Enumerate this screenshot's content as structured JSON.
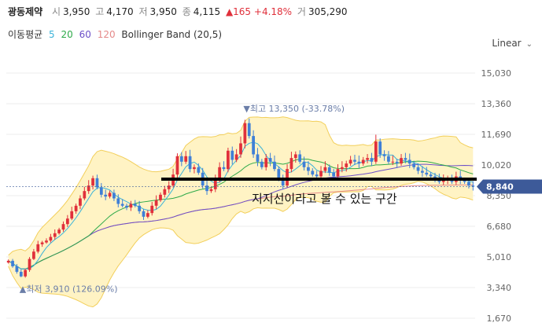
{
  "header": {
    "name": "광동제약",
    "open_label": "시",
    "open": "3,950",
    "high_label": "고",
    "high": "4,170",
    "low_label": "저",
    "low": "3,950",
    "close_label": "종",
    "close": "4,115",
    "change": "▲165 +4.18%",
    "volume_label": "거",
    "volume": "305,290"
  },
  "indicators": {
    "label": "이동평균",
    "ma5": "5",
    "ma20": "20",
    "ma60": "60",
    "ma120": "120",
    "bollinger": "Bollinger Band (20,5)"
  },
  "scale_label": "Linear",
  "colors": {
    "up": "#e0303b",
    "down": "#3f7fd6",
    "ma5": "#3bb3d9",
    "ma20": "#2eaa4a",
    "ma60": "#6b4fc8",
    "ma120": "#e58a8a",
    "band": "#fff3c4",
    "band_edge": "#f2cf5b",
    "current": "#3d5a99"
  },
  "chart_data": {
    "type": "candlestick",
    "y_scale": "linear",
    "ylim": [
      1670,
      15030
    ],
    "yticks": [
      "15,030",
      "13,360",
      "11,690",
      "10,020",
      "8,350",
      "6,680",
      "5,010",
      "3,340",
      "1,670"
    ],
    "current_price": "8,840",
    "grid": true,
    "max_note": "▼최고 13,350 (-33.78%)",
    "min_note": "▲최저 3,910 (126.09%)",
    "annotation": "지지선이라고 볼 수 있는 구간",
    "support_line": 8650,
    "close_path": [
      4800,
      4500,
      4200,
      3950,
      4300,
      4900,
      5300,
      5700,
      5800,
      5900,
      6100,
      6300,
      6500,
      6800,
      7100,
      7500,
      7800,
      8200,
      8600,
      8900,
      9300,
      8800,
      8400,
      8300,
      8500,
      8200,
      7900,
      7800,
      7700,
      7900,
      7800,
      7500,
      7200,
      7400,
      7800,
      8100,
      8400,
      8700,
      8900,
      9500,
      10500,
      10200,
      10500,
      9800,
      9900,
      9600,
      8900,
      8600,
      8700,
      9300,
      9900,
      9800,
      10800,
      10300,
      10600,
      11200,
      12300,
      11600,
      10600,
      10200,
      9900,
      10400,
      10200,
      9800,
      9300,
      8900,
      9800,
      10400,
      10600,
      10200,
      9900,
      9700,
      9500,
      9400,
      9700,
      9900,
      9600,
      9400,
      9800,
      9900,
      10100,
      10300,
      10200,
      10100,
      10300,
      10400,
      10200,
      11300,
      10600,
      10500,
      10200,
      10200,
      10100,
      10400,
      10300,
      10100,
      9900,
      9700,
      9600,
      9500,
      9400,
      9300,
      9100,
      9200,
      9300,
      9100,
      9400,
      9200,
      9100,
      8900,
      8840
    ],
    "max_index": 56,
    "min_index": 3
  }
}
